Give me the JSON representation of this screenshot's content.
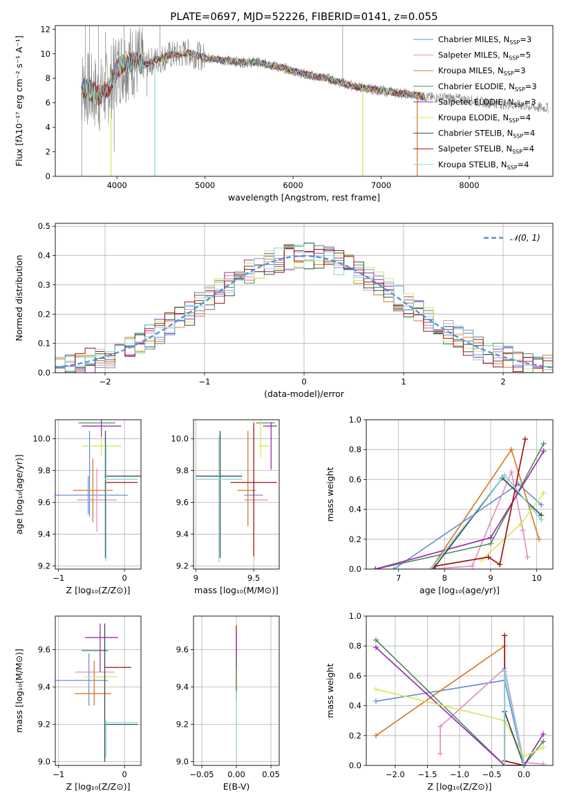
{
  "figure": {
    "title": "PLATE=0697, MJD=52226, FIBERID=0141, z=0.055",
    "colors": {
      "Chabrier MILES": "#6a8fd8",
      "Salpeter MILES": "#e38fc0",
      "Kroupa MILES": "#d9782a",
      "Chabrier ELODIE": "#4f8f5c",
      "Salpeter ELODIE": "#9a2bb0",
      "Kroupa ELODIE": "#d6e85a",
      "Chabrier STELIB": "#3a4a4a",
      "Salpeter STELIB": "#a01010",
      "Kroupa STELIB": "#7fd8dc",
      "data": "#808080",
      "gaussian": "#5b8ed6"
    }
  },
  "chart_data": [
    {
      "id": "spectrum",
      "type": "line",
      "title": "PLATE=0697, MJD=52226, FIBERID=0141, z=0.055",
      "xlabel": "wavelength [Angstrom, rest frame]",
      "ylabel": "Flux [fλ10⁻¹⁷ erg cm⁻² s⁻¹ A⁻¹]",
      "xlim": [
        3300,
        8950
      ],
      "ylim": [
        0,
        12.3
      ],
      "xticks": [
        4000,
        5000,
        6000,
        7000,
        8000
      ],
      "yticks": [
        0,
        2,
        4,
        6,
        8,
        10,
        12
      ],
      "legend_position": "top-right",
      "legend": [
        {
          "series": "Chabrier MILES",
          "text": "Chabrier MILES, N",
          "sub": "SSP",
          "tail": "=3"
        },
        {
          "series": "Salpeter MILES",
          "text": "Salpeter MILES, N",
          "sub": "SSP",
          "tail": "=5"
        },
        {
          "series": "Kroupa MILES",
          "text": "Kroupa MILES, N",
          "sub": "SSP",
          "tail": "=3"
        },
        {
          "series": "Chabrier ELODIE",
          "text": "Chabrier ELODIE, N",
          "sub": "SSP",
          "tail": "=3"
        },
        {
          "series": "Salpeter ELODIE",
          "text": "Salpeter ELODIE, N",
          "sub": "SSP",
          "tail": "=3"
        },
        {
          "series": "Kroupa ELODIE",
          "text": "Kroupa ELODIE, N",
          "sub": "SSP",
          "tail": "=4"
        },
        {
          "series": "Chabrier STELIB",
          "text": "Chabrier STELIB, N",
          "sub": "SSP",
          "tail": "=4"
        },
        {
          "series": "Salpeter STELIB",
          "text": "Salpeter STELIB, N",
          "sub": "SSP",
          "tail": "=4"
        },
        {
          "series": "Kroupa STELIB",
          "text": "Kroupa STELIB, N",
          "sub": "SSP",
          "tail": "=4"
        }
      ],
      "continuum": {
        "x": [
          3600,
          3700,
          3800,
          3900,
          4000,
          4100,
          4200,
          4300,
          4400,
          4500,
          4600,
          4700,
          4800,
          5000,
          5200,
          5400,
          5600,
          5800,
          6000,
          6200,
          6400,
          6600,
          6800,
          7000,
          7200,
          7400,
          7600,
          7800,
          8000,
          8200,
          8400,
          8600,
          8800
        ],
        "y": [
          7.3,
          7.0,
          6.6,
          7.2,
          8.8,
          9.3,
          9.4,
          9.0,
          9.4,
          9.6,
          9.9,
          9.9,
          10.1,
          9.7,
          9.5,
          9.3,
          9.3,
          9.0,
          8.6,
          8.2,
          8.0,
          7.5,
          7.2,
          7.0,
          6.8,
          6.6,
          6.4,
          6.4,
          6.2,
          6.0,
          5.9,
          5.8,
          5.6
        ]
      },
      "dips": [
        {
          "x": 3600,
          "y": 0
        },
        {
          "x": 3750,
          "y": 5.6
        },
        {
          "x": 3933,
          "y": 0
        },
        {
          "x": 3968,
          "y": 2.0
        },
        {
          "x": 4101,
          "y": 6.0
        },
        {
          "x": 4340,
          "y": 6.5
        },
        {
          "x": 4430,
          "y": 0
        },
        {
          "x": 6790,
          "y": 0
        },
        {
          "x": 7410,
          "y": 0
        }
      ],
      "spikes": [
        {
          "x": 3640,
          "y": 12.3
        },
        {
          "x": 3690,
          "y": 12.3
        },
        {
          "x": 3790,
          "y": 12.3
        },
        {
          "x": 3870,
          "y": 11.8
        },
        {
          "x": 4080,
          "y": 12.3
        },
        {
          "x": 4490,
          "y": 12.3
        },
        {
          "x": 6563,
          "y": 12.3
        }
      ]
    },
    {
      "id": "residuals",
      "type": "bar",
      "xlabel": "(data-model)/error",
      "ylabel": "Normed distribution",
      "xlim": [
        -2.5,
        2.5
      ],
      "ylim": [
        0,
        0.51
      ],
      "xticks": [
        -2,
        -1,
        0,
        1,
        2
      ],
      "yticks": [
        0.0,
        0.1,
        0.2,
        0.3,
        0.4,
        0.5
      ],
      "grid": true,
      "legend_position": "top-right",
      "gaussian_label": "𝒩(0, 1)",
      "bin_width": 0.1,
      "bin_start": -2.5
    },
    {
      "id": "age_vs_Z",
      "type": "scatter",
      "xlabel": "Z [log₁₀(Z/Z⊙)]",
      "ylabel": "age  [log₁₀(age/yr)]",
      "xlim": [
        -1.05,
        0.25
      ],
      "ylim": [
        9.18,
        10.12
      ],
      "xticks": [
        -1,
        0
      ],
      "xtick_labels": [
        "−1",
        "0"
      ],
      "yticks": [
        9.2,
        9.4,
        9.6,
        9.8,
        10.0
      ],
      "grid": true,
      "errorbars": [
        {
          "series": "Chabrier MILES",
          "x": -0.55,
          "xerr": 0.6,
          "y": 9.645,
          "yerr": 0.12
        },
        {
          "series": "Chabrier MILES",
          "x": -0.53,
          "y": 9.78,
          "yerr": 0.27,
          "xerr": 0
        },
        {
          "series": "Salpeter MILES",
          "x": -0.42,
          "xerr": 0.3,
          "y": 9.615,
          "yerr": 0.2
        },
        {
          "series": "Kroupa MILES",
          "x": -0.48,
          "xerr": 0.3,
          "y": 9.675,
          "yerr": 0.2
        },
        {
          "series": "Chabrier ELODIE",
          "x": -0.42,
          "xerr": 0.28,
          "y": 10.1,
          "yerr": 0
        },
        {
          "series": "Salpeter ELODIE",
          "x": -0.35,
          "xerr": 0.3,
          "y": 10.08,
          "yerr": 0.08
        },
        {
          "series": "Kroupa ELODIE",
          "x": -0.35,
          "xerr": 0.3,
          "y": 9.955,
          "yerr": 0.06
        },
        {
          "series": "Chabrier STELIB",
          "x": 0.0,
          "xerr": 0.3,
          "y": 9.765,
          "yerr": 0
        },
        {
          "series": "Chabrier STELIB",
          "x": -0.29,
          "y": 9.65,
          "yerr": 0.4,
          "xerr": 0
        },
        {
          "series": "Salpeter STELIB",
          "x": -0.05,
          "xerr": 0.25,
          "y": 9.725,
          "yerr": 0
        },
        {
          "series": "Kroupa STELIB",
          "x": -0.05,
          "xerr": 0.25,
          "y": 9.745,
          "yerr": 0
        },
        {
          "series": "Kroupa STELIB",
          "x": -0.28,
          "y": 9.6,
          "yerr": 0.37,
          "xerr": 0
        }
      ]
    },
    {
      "id": "age_vs_mass",
      "type": "scatter",
      "xlabel": "mass [log₁₀(M/M⊙)]",
      "ylabel": "",
      "xlim": [
        8.98,
        9.72
      ],
      "ylim": [
        9.18,
        10.12
      ],
      "xticks": [
        9.0,
        9.5
      ],
      "yticks": [
        9.2,
        9.4,
        9.6,
        9.8,
        10.0
      ],
      "grid": true,
      "errorbars": [
        {
          "series": "Chabrier MILES",
          "x": 9.5,
          "xerr": 0.08,
          "y": 9.645,
          "yerr": 0
        },
        {
          "series": "Salpeter MILES",
          "x": 9.52,
          "xerr": 0.1,
          "y": 9.615,
          "yerr": 0
        },
        {
          "series": "Kroupa MILES",
          "x": 9.44,
          "xerr": 0.08,
          "y": 9.675,
          "yerr": 0
        },
        {
          "series": "Kroupa MILES",
          "x": 9.45,
          "y": 9.75,
          "yerr": 0.3,
          "xerr": 0
        },
        {
          "series": "Chabrier ELODIE",
          "x": 9.6,
          "xerr": 0.08,
          "y": 10.1,
          "yerr": 0
        },
        {
          "series": "Salpeter ELODIE",
          "x": 9.64,
          "xerr": 0.06,
          "y": 10.08,
          "yerr": 0
        },
        {
          "series": "Salpeter ELODIE",
          "x": 9.65,
          "y": 9.955,
          "yerr": 0.15,
          "xerr": 0
        },
        {
          "series": "Kroupa ELODIE",
          "x": 9.59,
          "xerr": 0.05,
          "y": 9.955,
          "yerr": 0
        },
        {
          "series": "Kroupa ELODIE",
          "x": 9.56,
          "y": 10.0,
          "yerr": 0.12,
          "xerr": 0
        },
        {
          "series": "Chabrier STELIB",
          "x": 9.2,
          "xerr": 0.2,
          "y": 9.765,
          "yerr": 0
        },
        {
          "series": "Chabrier STELIB",
          "x": 9.21,
          "y": 9.65,
          "yerr": 0.4,
          "xerr": 0
        },
        {
          "series": "Salpeter STELIB",
          "x": 9.5,
          "xerr": 0.2,
          "y": 9.725,
          "yerr": 0
        },
        {
          "series": "Salpeter STELIB",
          "x": 9.5,
          "y": 9.68,
          "yerr": 0.42,
          "xerr": 0
        },
        {
          "series": "Kroupa STELIB",
          "x": 9.2,
          "xerr": 0.2,
          "y": 9.745,
          "yerr": 0
        },
        {
          "series": "Kroupa STELIB",
          "x": 9.2,
          "y": 9.62,
          "yerr": 0.4,
          "xerr": 0
        }
      ]
    },
    {
      "id": "weight_vs_age",
      "type": "line",
      "xlabel": "age  [log₁₀(age/yr)]",
      "ylabel": "mass weight",
      "xlim": [
        6.3,
        10.35
      ],
      "ylim": [
        0,
        1.0
      ],
      "xticks": [
        7,
        8,
        9,
        10
      ],
      "yticks": [
        0.0,
        0.2,
        0.4,
        0.6,
        0.8,
        1.0
      ],
      "grid": true,
      "series": [
        {
          "name": "Chabrier MILES",
          "x": [
            6.9,
            9.6,
            10.1
          ],
          "y": [
            0.0,
            0.57,
            0.43
          ]
        },
        {
          "name": "Salpeter MILES",
          "x": [
            7.7,
            8.6,
            9.45,
            9.7,
            9.8
          ],
          "y": [
            0.0,
            0.02,
            0.65,
            0.26,
            0.08
          ]
        },
        {
          "name": "Kroupa MILES",
          "x": [
            7.7,
            9.45,
            10.05
          ],
          "y": [
            0.0,
            0.8,
            0.2
          ]
        },
        {
          "name": "Chabrier ELODIE",
          "x": [
            6.5,
            9.0,
            10.15
          ],
          "y": [
            0.0,
            0.17,
            0.84
          ]
        },
        {
          "name": "Salpeter ELODIE",
          "x": [
            6.5,
            9.0,
            10.15
          ],
          "y": [
            0.0,
            0.21,
            0.79
          ]
        },
        {
          "name": "Kroupa ELODIE",
          "x": [
            8.8,
            9.65,
            10.15
          ],
          "y": [
            0.06,
            0.3,
            0.51
          ]
        },
        {
          "name": "Chabrier STELIB",
          "x": [
            7.75,
            9.25,
            10.1
          ],
          "y": [
            0.0,
            0.61,
            0.36
          ]
        },
        {
          "name": "Salpeter STELIB",
          "x": [
            7.8,
            8.95,
            9.2,
            9.75
          ],
          "y": [
            0.02,
            0.08,
            0.03,
            0.87
          ]
        },
        {
          "name": "Kroupa STELIB",
          "x": [
            7.7,
            9.3,
            10.1
          ],
          "y": [
            0.0,
            0.63,
            0.33
          ]
        }
      ]
    },
    {
      "id": "mass_vs_Z",
      "type": "scatter",
      "xlabel": "Z [log₁₀(Z/Z⊙)]",
      "ylabel": "mass [log₁₀(M/M⊙)]",
      "xlim": [
        -1.05,
        0.25
      ],
      "ylim": [
        8.98,
        9.78
      ],
      "xticks": [
        -1,
        0
      ],
      "xtick_labels": [
        "−1",
        "0"
      ],
      "yticks": [
        9.0,
        9.2,
        9.4,
        9.6
      ],
      "grid": true,
      "errorbars": [
        {
          "series": "Chabrier MILES",
          "x": -0.7,
          "xerr": 0.45,
          "y": 9.435,
          "yerr": 0
        },
        {
          "series": "Chabrier MILES",
          "x": -0.54,
          "y": 9.44,
          "yerr": 0.14,
          "xerr": 0
        },
        {
          "series": "Salpeter MILES",
          "x": -0.45,
          "xerr": 0.3,
          "y": 9.48,
          "yerr": 0
        },
        {
          "series": "Kroupa MILES",
          "x": -0.48,
          "xerr": 0.28,
          "y": 9.365,
          "yerr": 0
        },
        {
          "series": "Kroupa MILES",
          "x": -0.46,
          "y": 9.42,
          "yerr": 0.12,
          "xerr": 0
        },
        {
          "series": "Chabrier ELODIE",
          "x": -0.45,
          "xerr": 0.2,
          "y": 9.595,
          "yerr": 0
        },
        {
          "series": "Salpeter ELODIE",
          "x": -0.35,
          "xerr": 0.25,
          "y": 9.665,
          "yerr": 0
        },
        {
          "series": "Salpeter ELODIE",
          "x": -0.37,
          "y": 9.61,
          "yerr": 0.13,
          "xerr": 0
        },
        {
          "series": "Kroupa ELODIE",
          "x": -0.35,
          "xerr": 0.25,
          "y": 9.455,
          "yerr": 0
        },
        {
          "series": "Chabrier STELIB",
          "x": -0.3,
          "y": 9.37,
          "yerr": 0.37,
          "xerr": 0
        },
        {
          "series": "Chabrier STELIB",
          "x": -0.05,
          "xerr": 0.25,
          "y": 9.2,
          "yerr": 0
        },
        {
          "series": "Salpeter STELIB",
          "x": -0.1,
          "xerr": 0.2,
          "y": 9.505,
          "yerr": 0
        },
        {
          "series": "Kroupa STELIB",
          "x": -0.05,
          "xerr": 0.25,
          "y": 9.21,
          "yerr": 0
        },
        {
          "series": "Kroupa STELIB",
          "x": -0.28,
          "y": 9.12,
          "yerr": 0.1,
          "xerr": 0
        }
      ]
    },
    {
      "id": "mass_vs_ebv",
      "type": "scatter",
      "xlabel": "E(B-V)",
      "ylabel": "",
      "xlim": [
        -0.062,
        0.062
      ],
      "ylim": [
        8.98,
        9.78
      ],
      "xticks": [
        -0.05,
        0.0,
        0.05
      ],
      "xtick_labels": [
        "−0.05",
        "0.00",
        "0.05"
      ],
      "yticks": [
        9.0,
        9.2,
        9.4,
        9.6
      ],
      "grid": true,
      "errorbars": [
        {
          "series": "Salpeter STELIB",
          "x": 0.0,
          "y": 9.55,
          "yerr": 0.18,
          "xerr": 0
        },
        {
          "series": "Salpeter ELODIE",
          "x": 0.0,
          "y": 9.6,
          "yerr": 0.1,
          "xerr": 0
        },
        {
          "series": "Chabrier ELODIE",
          "x": 0.0,
          "y": 9.45,
          "yerr": 0.12,
          "xerr": 0
        },
        {
          "series": "Kroupa STELIB",
          "x": 0.0,
          "y": 9.2,
          "yerr": 0.18,
          "xerr": 0
        }
      ]
    },
    {
      "id": "weight_vs_Z",
      "type": "line",
      "xlabel": "Z [log₁₀(Z/Z⊙)]",
      "ylabel": "mass weight",
      "xlim": [
        -2.45,
        0.45
      ],
      "ylim": [
        0,
        1.0
      ],
      "xticks": [
        -2.0,
        -1.5,
        -1.0,
        -0.5,
        0.0
      ],
      "xtick_labels": [
        "−2.0",
        "−1.5",
        "−1.0",
        "−0.5",
        "0.0"
      ],
      "yticks": [
        0.0,
        0.2,
        0.4,
        0.6,
        0.8,
        1.0
      ],
      "grid": true,
      "series": [
        {
          "name": "Chabrier MILES",
          "x": [
            -2.3,
            -0.3,
            0.0
          ],
          "y": [
            0.43,
            0.57,
            0.0
          ]
        },
        {
          "name": "Salpeter MILES",
          "x": [
            -1.3,
            -1.3,
            -0.3,
            0.0,
            0.3
          ],
          "y": [
            0.08,
            0.26,
            0.65,
            0.02,
            0.01
          ]
        },
        {
          "name": "Kroupa MILES",
          "x": [
            -2.3,
            -0.3,
            -0.3,
            0.0
          ],
          "y": [
            0.2,
            0.8,
            0.0,
            0.0
          ]
        },
        {
          "name": "Chabrier ELODIE",
          "x": [
            -2.3,
            -0.3,
            0.0,
            0.3
          ],
          "y": [
            0.84,
            0.0,
            0.0,
            0.16
          ]
        },
        {
          "name": "Salpeter ELODIE",
          "x": [
            -2.3,
            -0.3,
            0.0,
            0.3
          ],
          "y": [
            0.79,
            0.0,
            0.0,
            0.21
          ]
        },
        {
          "name": "Kroupa ELODIE",
          "x": [
            -2.3,
            -0.3,
            0.0,
            0.3
          ],
          "y": [
            0.51,
            0.3,
            0.06,
            0.12
          ]
        },
        {
          "name": "Chabrier STELIB",
          "x": [
            -0.3,
            -0.3,
            0.0
          ],
          "y": [
            0.0,
            0.36,
            0.0
          ]
        },
        {
          "name": "Salpeter STELIB",
          "x": [
            -0.3,
            -0.3,
            0.0
          ],
          "y": [
            0.87,
            0.03,
            0.0
          ]
        },
        {
          "name": "Kroupa STELIB",
          "x": [
            -0.3,
            -0.3,
            0.0
          ],
          "y": [
            0.0,
            0.63,
            0.0
          ]
        }
      ]
    }
  ]
}
